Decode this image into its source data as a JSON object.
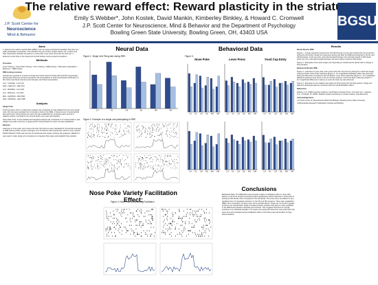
{
  "header": {
    "title": "The relative reward effect: Reward plasticity in the striatum",
    "authors": "Emily S.Webber*, John Kostek, David Mankin, Kimberley Binkley, & Howard C. Cromwell",
    "affiliation1": "J.P. Scott Center for Neuroscience, Mind & Behavior and the Department of Psychology",
    "affiliation2": "Bowling Green State University, Bowling Green, OH, 43403 USA",
    "logo_left_lines": [
      "J.P. Scott Center for",
      "Neuroscience",
      "Mind & Behavior"
    ],
    "logo_right": "BGSU."
  },
  "left": {
    "aims_head": "Aims",
    "aims_text": "1. Examine the relative reward effect (RRE) in the rat using a behavioral paradigm that does not utilize devaluation procedures. This will allow the use of three reward values: low, medium and high. Dependent variables are latency to nose poke, lever press and enter the food cup. 2. Examine neural firing in the dorsal and ventral striatum during reward comparison.",
    "methods_head": "Methods",
    "procedure_head": "Procedure",
    "procedure_text": "Lever Training > Nose Poke Training > Tone Training > RRE training > Microwire Implantation > Recovery > RRE Testing",
    "rre_head": "RRE testing procedure",
    "rre_text": "Animals are exposed to a series of single and mixed outcome blocks (NS and MO respectively). During each block the animal is exposed to 20 presentations of each tone/reward combination. A 30 minute inter-block interval occurs between each block presentation.",
    "blocks": [
      "Low - Low/High - Low (LH)",
      "High - High/Low - High (HL)",
      "Low - Med/Med - Low (LM)",
      "Low - Med/Low - Low (ML)",
      "Med - High/Med - Med (MH)",
      "High - Med/High - High (HM)"
    ],
    "analysis_head": "Analysis",
    "single_head": "Single Units",
    "single_text": "Food Cup Entry Units: a preliminary analysis was conducted on task related food cup entry single units. 60 units were sampled from 2 animals to look for the RRE. A binned count of neural activity was performed. Firing duration for each unit was established by comparing each second to baseline activity. Unit data for the second before cue onset was baseline.",
    "nose_text": "Nose Poke Units: A more detailed and targeted analysis was conducted on 9 ventral striatum; task related nose poke units from a single animal. Firing duration for each unit was established.",
    "behavior_head": "Behavior",
    "behavior_text": "Latencies to nose poke, lever press and enter the food cup were calculated for 20 animals exposed to RRE training and/or surgery. Averages over 20 trials for each animal was used for every session.",
    "stats_text": "PASW Statistics 0.000 was used for the behavioral and single unit firing rate analyses. Matlab 6.0 was used to make single unit comparisons to baseline firing rates and establish firing duration."
  },
  "mid": {
    "neural_head": "Neural Data",
    "behavioral_head": "Behavioral Data",
    "fig1_title": "Figure 1: Single Unit Firing rate during RRE",
    "fig2_title": "Figure 2: Example of a single unit participating in RRE",
    "fig3_title": "Figure 3:",
    "nosepoke": "Nose Poke",
    "leverpress": "Lever Press",
    "foodcup": "Food Cup Entry",
    "np_facil_head": "Nose Poke Variety Facilitation Effect:",
    "fig4_title": "Figure 4: Nose Poke Units During Facilitation",
    "conclusions_head": "Conclusions",
    "conclusions_text": "Behavioral Data: The RRE effect was primarily evident in facilitation effect in nose poke latency. In all of the sessions animals produce significantly shorter latencies to nose poke in during the MO blocks when compared to the NS blocks. The tones were not efficient in any significant form of regulated contrast in to the NS and MO sessions. There was a significant RRE in the LH session, but there were some animals effects. These are no trends in greater sentence too. Neural Data: Single unit data provides evidence that there is some variability in the differences between decrease and increase. This suggests that there is a single sensitive to an individual activities. The single unit responses during the nose poke show the same time and increased activity facilitation effect in both firing rate and duration of firing above baseline."
  },
  "right": {
    "results_head": "Results",
    "neural_results_head": "Neural Results RRE:",
    "neural_results_text": "Figure 1 - A lower proportion (percent) for the HM (Groups 2) units was evident than the proportion during the NS blocks. Single unit responses during and after the RRE and preferred by the HL and HM decreases. Food cup entry units discriminated between low and high reward in MO blocks. Food cup entry units discriminated between low and medium reward in MO blocks.",
    "fig2_text": "Figure 2 - Examples of the same single unit responding to reward across blocks with a change in firing duration.",
    "behav_results_head": "Behavioral Results RRE:",
    "behav_results_text": "Figure 3 - Latencies to nose poke, lever press and enter the food cup during the mixed and single outcome blocks. Nose Poke Latencies (Figure 3 - 8): A significant facilitation effect was observed during the MO when compared to the NS blocks. Lever Press Latencies (Figure 3 - C): A significant difference between lever press in the LH and HL sessions. Food Cup Entry Latencies (Figure 3 - D): A significant difference in latency to enter the food cup was observed.",
    "fig4_text": "Figure 4 - Example of nose related nose poke unit firing during the low high session. Single unit data and behavioral data are consistent with the rostral-facilitation effect.",
    "references_head": "References",
    "references_text": "Flaherty, C.F. (1996) Incentive relativity. Cambridge University Press. Cromwell, H.C., Hassani, O.K., & Schultz, W. (2005). Relative reward processing in primate striatum. Exp Brain Res.",
    "ack_head": "Acknowledgements",
    "ack_text": "J.P. Scott Center for Neuroscience Mind and Behavior, Bowling Green State University Undergraduate Research Fellowships (Kostek and Binkley)."
  },
  "chart_data": [
    {
      "type": "bar",
      "title": "Figure 1: Single Unit Firing rate during RRE",
      "categories": [
        "LH",
        "HL",
        "LM",
        "ML",
        "MH",
        "HM"
      ],
      "series": [
        {
          "values": [
            42,
            58,
            35,
            52,
            30,
            38
          ]
        },
        {
          "values": [
            30,
            41,
            26,
            33,
            44,
            27
          ]
        }
      ]
    },
    {
      "type": "bar",
      "title": "Nose Poke",
      "categories": [
        "LH",
        "HL",
        "LM",
        "ML",
        "MH",
        "HM"
      ],
      "series": [
        {
          "values": [
            3.2,
            2.4,
            3.0,
            2.2,
            2.8,
            2.1
          ]
        },
        {
          "values": [
            2.1,
            3.1,
            2.0,
            2.9,
            1.9,
            3.0
          ]
        }
      ]
    },
    {
      "type": "bar",
      "title": "Lever Press",
      "categories": [
        "LH",
        "HL",
        "LM",
        "ML",
        "MH",
        "HM"
      ],
      "series": [
        {
          "values": [
            2.6,
            2.9,
            2.4,
            2.7,
            2.5,
            2.8
          ]
        },
        {
          "values": [
            2.2,
            2.5,
            2.1,
            2.4,
            2.3,
            2.4
          ]
        }
      ]
    },
    {
      "type": "bar",
      "title": "Food Cup Entry",
      "categories": [
        "LH",
        "HL",
        "LM",
        "ML",
        "MH",
        "HM"
      ],
      "series": [
        {
          "values": [
            1.8,
            1.4,
            1.7,
            1.5,
            1.6,
            1.5
          ]
        },
        {
          "values": [
            1.4,
            1.6,
            1.3,
            1.5,
            1.4,
            1.6
          ]
        }
      ]
    }
  ],
  "colors": {
    "accent": "#1f3f7a",
    "series_a": "#2f4b8e",
    "series_b": "#a5bfe2",
    "scatter": "#1a1a1a",
    "trace": "#5a5a5a"
  }
}
